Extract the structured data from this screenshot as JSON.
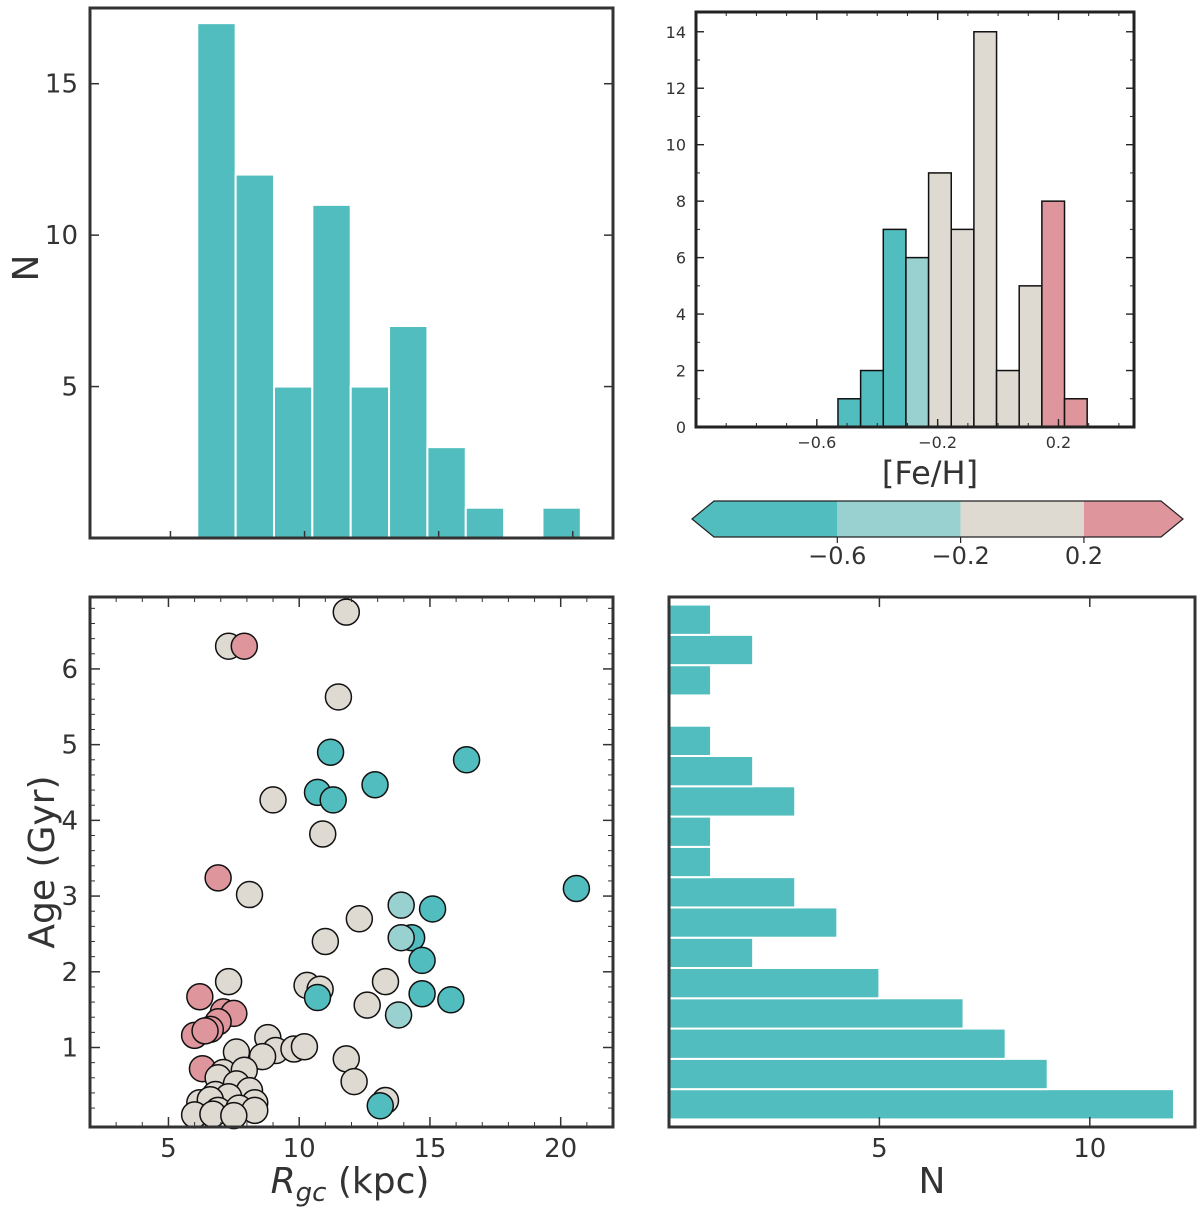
{
  "colors": {
    "teal": "#52BDBE",
    "light_teal": "#99D1D1",
    "beige": "#DEDAD2",
    "pink": "#DE959B",
    "frame": "#333333",
    "edge_dark": "#222222",
    "bar_edge": "#ffffff"
  },
  "chart_data": [
    {
      "id": "rgc-histogram",
      "type": "bar",
      "title": "",
      "xlabel": "",
      "ylabel": "N",
      "xlim": [
        2,
        21.5
      ],
      "ylim": [
        0,
        17.5
      ],
      "yticks": [
        5,
        10,
        15
      ],
      "bin_edges": [
        6,
        7.43,
        8.86,
        10.29,
        11.72,
        13.15,
        14.58,
        16.01,
        17.44,
        18.87,
        20.3
      ],
      "values": [
        17,
        12,
        5,
        11,
        5,
        7,
        3,
        1,
        0,
        1
      ],
      "grid": false
    },
    {
      "id": "feh-histogram",
      "type": "bar",
      "title": "",
      "xlabel": "[Fe/H]",
      "ylabel": "",
      "xlim": [
        -1.0,
        0.45
      ],
      "ylim": [
        0,
        14.7
      ],
      "xticks": [
        -0.6,
        -0.2,
        0.2
      ],
      "xtick_labels": [
        "−0.6",
        "−0.2",
        "0.2"
      ],
      "yticks": [
        0,
        2,
        4,
        6,
        8,
        10,
        12,
        14
      ],
      "bin_edges": [
        -0.53,
        -0.455,
        -0.38,
        -0.305,
        -0.23,
        -0.155,
        -0.08,
        -0.005,
        0.07,
        0.145,
        0.22,
        0.295
      ],
      "values": [
        1,
        2,
        7,
        6,
        9,
        7,
        14,
        2,
        5,
        8,
        1
      ],
      "bar_color_keys": [
        "teal",
        "teal",
        "teal",
        "light_teal",
        "beige",
        "beige",
        "beige",
        "beige",
        "beige",
        "pink",
        "pink"
      ],
      "grid": false
    },
    {
      "id": "feh-colorbar",
      "type": "colorbar",
      "range": [
        -1.0,
        0.45
      ],
      "bounds": [
        -0.6,
        -0.2,
        0.2
      ],
      "segment_color_keys": [
        "teal",
        "light_teal",
        "beige",
        "pink"
      ],
      "ticks": [
        -0.6,
        -0.2,
        0.2
      ],
      "tick_labels": [
        "−0.6",
        "−0.2",
        "0.2"
      ],
      "extend": "both"
    },
    {
      "id": "age-rgc-scatter",
      "type": "scatter",
      "title": "",
      "xlabel_main": "R",
      "xlabel_sub": "gc",
      "xlabel_unit": " (kpc)",
      "ylabel": "Age (Gyr)",
      "xlim": [
        2.0,
        22.0
      ],
      "ylim": [
        -0.05,
        6.95
      ],
      "xticks": [
        5,
        10,
        15,
        20
      ],
      "yticks": [
        1,
        2,
        3,
        4,
        5,
        6
      ],
      "points": [
        {
          "x": 7.3,
          "y": 6.3,
          "c": "beige"
        },
        {
          "x": 7.9,
          "y": 6.3,
          "c": "pink"
        },
        {
          "x": 11.8,
          "y": 6.75,
          "c": "beige"
        },
        {
          "x": 11.5,
          "y": 5.63,
          "c": "beige"
        },
        {
          "x": 11.2,
          "y": 4.9,
          "c": "teal"
        },
        {
          "x": 10.7,
          "y": 4.37,
          "c": "teal"
        },
        {
          "x": 11.3,
          "y": 4.27,
          "c": "teal"
        },
        {
          "x": 9.0,
          "y": 4.27,
          "c": "beige"
        },
        {
          "x": 12.9,
          "y": 4.47,
          "c": "teal"
        },
        {
          "x": 16.4,
          "y": 4.8,
          "c": "teal"
        },
        {
          "x": 10.9,
          "y": 3.82,
          "c": "beige"
        },
        {
          "x": 6.9,
          "y": 3.24,
          "c": "pink"
        },
        {
          "x": 8.1,
          "y": 3.02,
          "c": "beige"
        },
        {
          "x": 20.6,
          "y": 3.1,
          "c": "teal"
        },
        {
          "x": 13.9,
          "y": 2.88,
          "c": "light_teal"
        },
        {
          "x": 15.1,
          "y": 2.83,
          "c": "teal"
        },
        {
          "x": 12.3,
          "y": 2.7,
          "c": "beige"
        },
        {
          "x": 11.0,
          "y": 2.4,
          "c": "beige"
        },
        {
          "x": 14.3,
          "y": 2.45,
          "c": "teal"
        },
        {
          "x": 13.9,
          "y": 2.45,
          "c": "light_teal"
        },
        {
          "x": 14.7,
          "y": 2.15,
          "c": "teal"
        },
        {
          "x": 10.3,
          "y": 1.82,
          "c": "beige"
        },
        {
          "x": 10.8,
          "y": 1.77,
          "c": "beige"
        },
        {
          "x": 10.7,
          "y": 1.66,
          "c": "teal"
        },
        {
          "x": 13.3,
          "y": 1.87,
          "c": "beige"
        },
        {
          "x": 12.6,
          "y": 1.56,
          "c": "beige"
        },
        {
          "x": 14.7,
          "y": 1.71,
          "c": "teal"
        },
        {
          "x": 15.8,
          "y": 1.63,
          "c": "teal"
        },
        {
          "x": 13.8,
          "y": 1.43,
          "c": "light_teal"
        },
        {
          "x": 7.3,
          "y": 1.87,
          "c": "beige"
        },
        {
          "x": 6.2,
          "y": 1.67,
          "c": "pink"
        },
        {
          "x": 7.1,
          "y": 1.47,
          "c": "pink"
        },
        {
          "x": 7.5,
          "y": 1.45,
          "c": "pink"
        },
        {
          "x": 6.9,
          "y": 1.34,
          "c": "pink"
        },
        {
          "x": 6.6,
          "y": 1.24,
          "c": "pink"
        },
        {
          "x": 6.0,
          "y": 1.16,
          "c": "pink"
        },
        {
          "x": 6.4,
          "y": 1.22,
          "c": "pink"
        },
        {
          "x": 6.3,
          "y": 0.72,
          "c": "pink"
        },
        {
          "x": 8.8,
          "y": 1.13,
          "c": "beige"
        },
        {
          "x": 7.6,
          "y": 0.94,
          "c": "beige"
        },
        {
          "x": 9.1,
          "y": 0.96,
          "c": "beige"
        },
        {
          "x": 9.8,
          "y": 0.98,
          "c": "beige"
        },
        {
          "x": 10.2,
          "y": 1.01,
          "c": "beige"
        },
        {
          "x": 8.6,
          "y": 0.88,
          "c": "beige"
        },
        {
          "x": 11.8,
          "y": 0.85,
          "c": "beige"
        },
        {
          "x": 7.1,
          "y": 0.67,
          "c": "beige"
        },
        {
          "x": 7.9,
          "y": 0.7,
          "c": "beige"
        },
        {
          "x": 6.9,
          "y": 0.6,
          "c": "beige"
        },
        {
          "x": 7.6,
          "y": 0.52,
          "c": "beige"
        },
        {
          "x": 12.1,
          "y": 0.55,
          "c": "beige"
        },
        {
          "x": 8.1,
          "y": 0.43,
          "c": "beige"
        },
        {
          "x": 6.8,
          "y": 0.38,
          "c": "beige"
        },
        {
          "x": 7.3,
          "y": 0.35,
          "c": "beige"
        },
        {
          "x": 6.2,
          "y": 0.27,
          "c": "beige"
        },
        {
          "x": 6.6,
          "y": 0.31,
          "c": "beige"
        },
        {
          "x": 8.3,
          "y": 0.27,
          "c": "beige"
        },
        {
          "x": 13.3,
          "y": 0.3,
          "c": "beige"
        },
        {
          "x": 13.1,
          "y": 0.23,
          "c": "teal"
        },
        {
          "x": 6.9,
          "y": 0.17,
          "c": "beige"
        },
        {
          "x": 7.7,
          "y": 0.2,
          "c": "beige"
        },
        {
          "x": 8.3,
          "y": 0.17,
          "c": "beige"
        },
        {
          "x": 6.0,
          "y": 0.11,
          "c": "beige"
        },
        {
          "x": 6.7,
          "y": 0.12,
          "c": "beige"
        },
        {
          "x": 7.5,
          "y": 0.1,
          "c": "beige"
        }
      ],
      "grid": false
    },
    {
      "id": "age-histogram",
      "type": "barh",
      "title": "",
      "xlabel": "N",
      "ylabel": "",
      "xlim": [
        0,
        12.5
      ],
      "ylim": [
        -0.05,
        6.95
      ],
      "xticks": [
        5,
        10
      ],
      "bin_edges": [
        0.05,
        0.45,
        0.85,
        1.25,
        1.65,
        2.05,
        2.45,
        2.85,
        3.25,
        3.65,
        4.05,
        4.45,
        4.85,
        5.25,
        5.65,
        6.05,
        6.45,
        6.85
      ],
      "values": [
        12,
        9,
        8,
        7,
        5,
        2,
        4,
        3,
        1,
        1,
        3,
        2,
        1,
        0,
        1,
        2,
        1
      ],
      "grid": false
    }
  ]
}
